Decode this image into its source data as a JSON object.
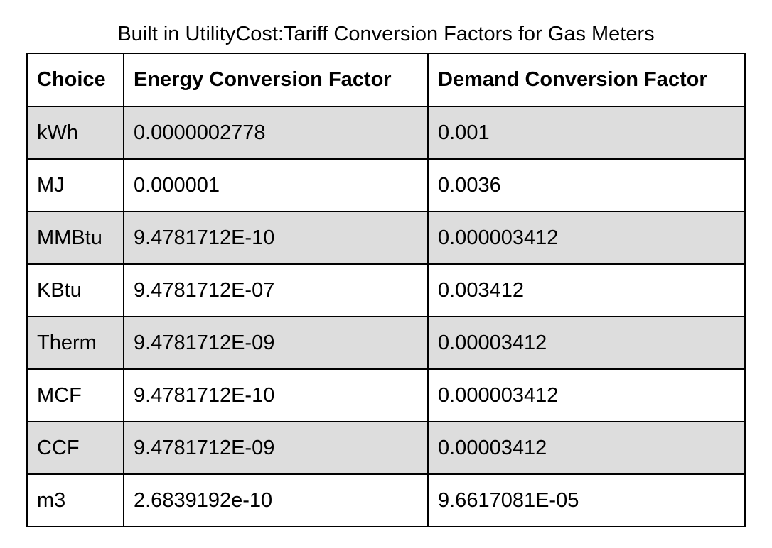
{
  "caption": "Built in UtilityCost:Tariff Conversion Factors for Gas Meters",
  "table": {
    "headers": [
      "Choice",
      "Energy Conversion Factor",
      "Demand Conversion Factor"
    ],
    "rows": [
      [
        "kWh",
        "0.0000002778",
        "0.001"
      ],
      [
        "MJ",
        "0.000001",
        "0.0036"
      ],
      [
        "MMBtu",
        "9.4781712E-10",
        "0.000003412"
      ],
      [
        "KBtu",
        "9.4781712E-07",
        "0.003412"
      ],
      [
        "Therm",
        "9.4781712E-09",
        "0.00003412"
      ],
      [
        "MCF",
        "9.4781712E-10",
        "0.000003412"
      ],
      [
        "CCF",
        "9.4781712E-09",
        "0.00003412"
      ],
      [
        "m3",
        "2.6839192e-10",
        "9.6617081E-05"
      ]
    ],
    "row_shading": "#dddddd"
  }
}
